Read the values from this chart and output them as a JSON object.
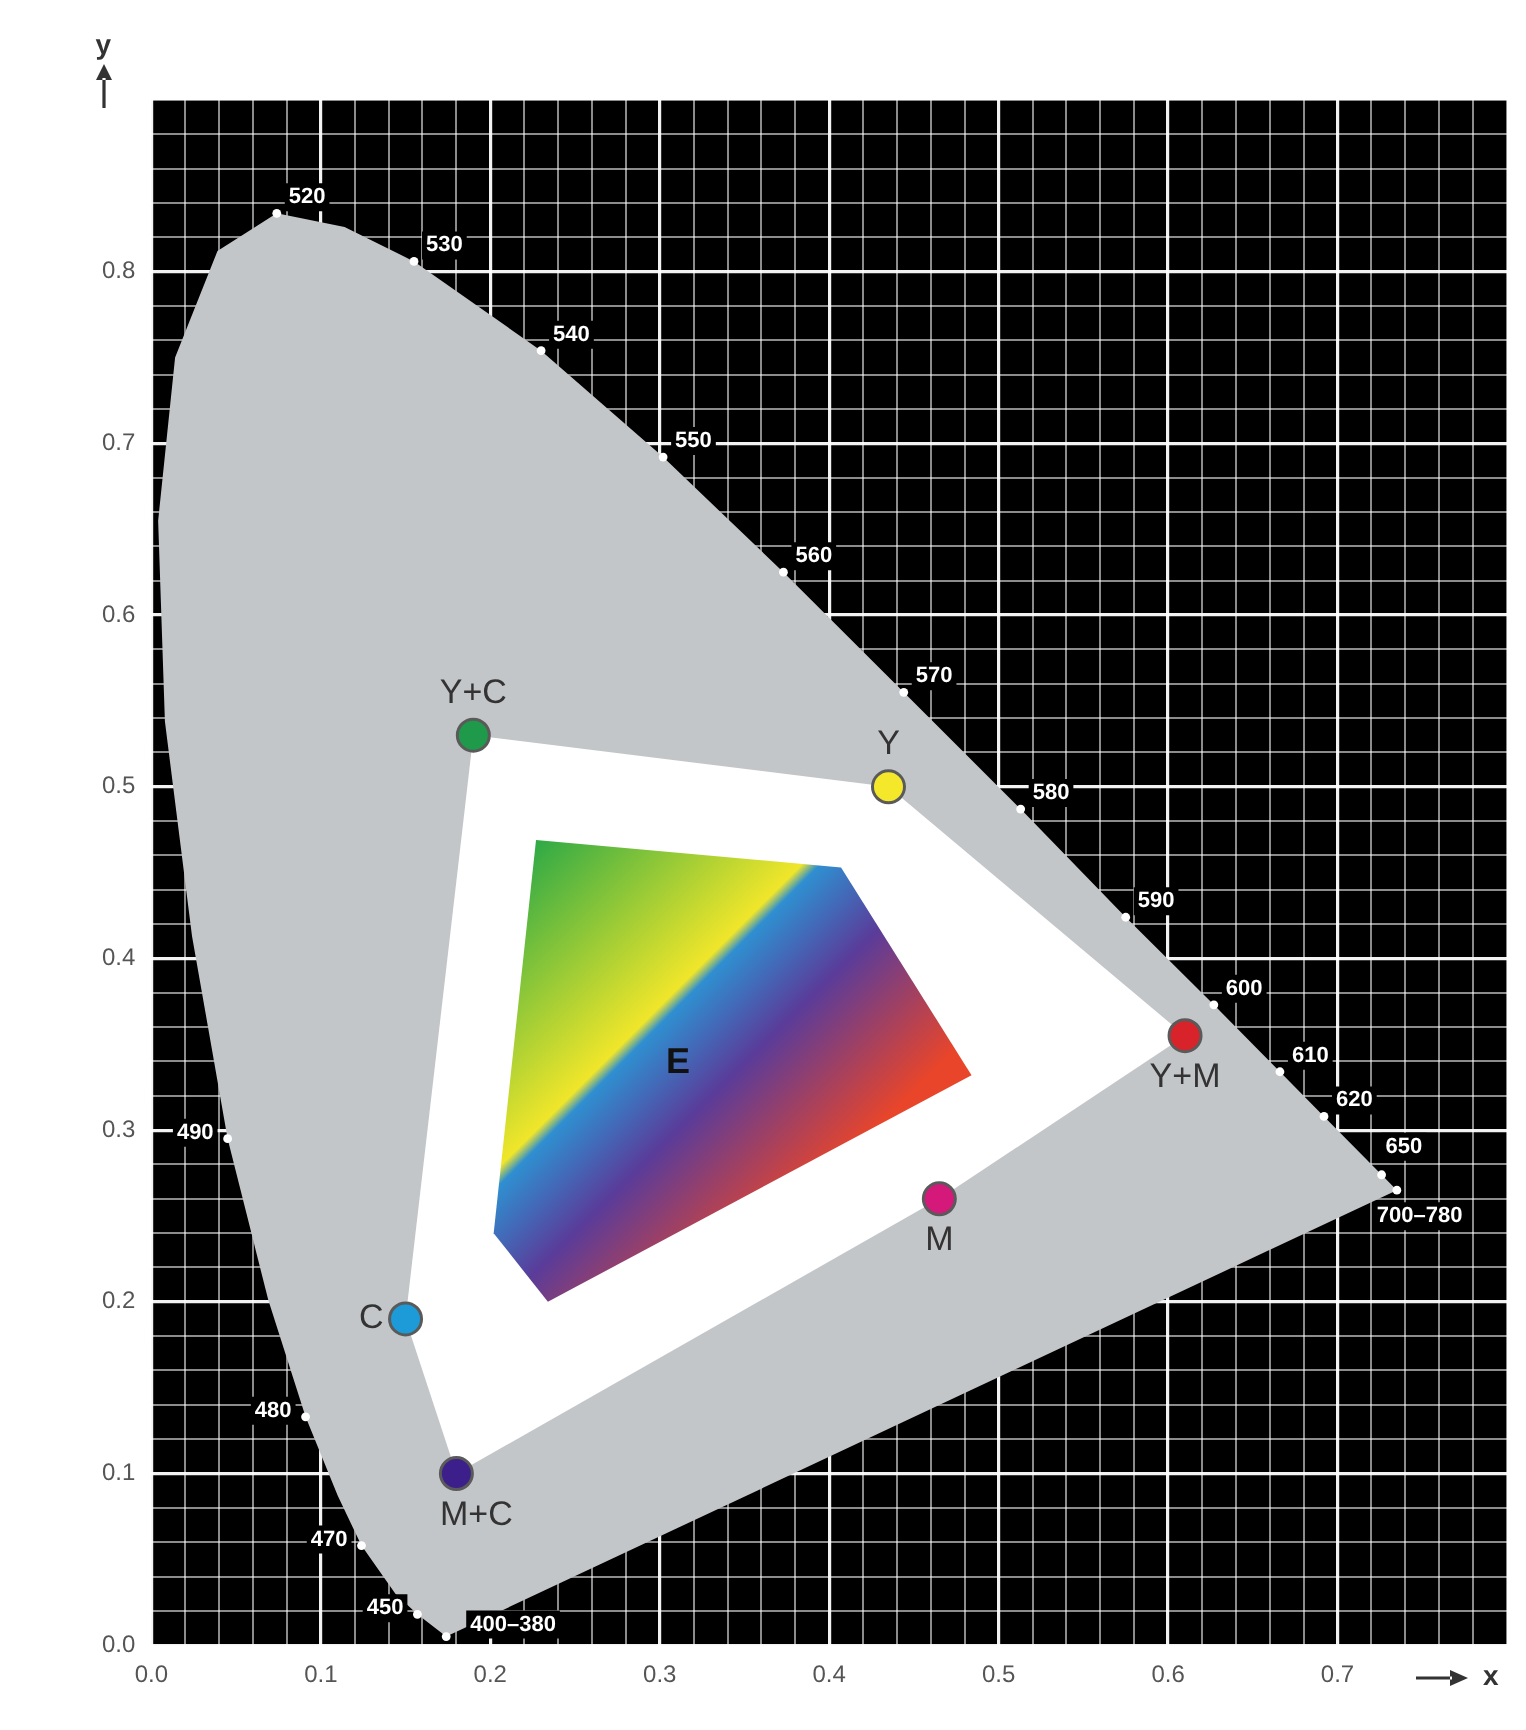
{
  "chart_data": {
    "type": "scatter",
    "xlabel": "x",
    "ylabel": "y",
    "xlim": [
      0,
      0.8
    ],
    "ylim": [
      0,
      0.9
    ],
    "xticks": [
      {
        "value": 0,
        "label": "0.0"
      },
      {
        "value": 0.02,
        "label": null
      },
      {
        "value": 0.04,
        "label": null
      },
      {
        "value": 0.06,
        "label": null
      },
      {
        "value": 0.08,
        "label": null
      },
      {
        "value": 0.1,
        "label": "0.1"
      },
      {
        "value": 0.12,
        "label": null
      },
      {
        "value": 0.14,
        "label": null
      },
      {
        "value": 0.16,
        "label": null
      },
      {
        "value": 0.18,
        "label": null
      },
      {
        "value": 0.2,
        "label": "0.2"
      },
      {
        "value": 0.22,
        "label": null
      },
      {
        "value": 0.24,
        "label": null
      },
      {
        "value": 0.26,
        "label": null
      },
      {
        "value": 0.28,
        "label": null
      },
      {
        "value": 0.3,
        "label": "0.3"
      },
      {
        "value": 0.32,
        "label": null
      },
      {
        "value": 0.34,
        "label": null
      },
      {
        "value": 0.36,
        "label": null
      },
      {
        "value": 0.38,
        "label": null
      },
      {
        "value": 0.4,
        "label": "0.4"
      },
      {
        "value": 0.42,
        "label": null
      },
      {
        "value": 0.44,
        "label": null
      },
      {
        "value": 0.46,
        "label": null
      },
      {
        "value": 0.48,
        "label": null
      },
      {
        "value": 0.5,
        "label": "0.5"
      },
      {
        "value": 0.52,
        "label": null
      },
      {
        "value": 0.54,
        "label": null
      },
      {
        "value": 0.56,
        "label": null
      },
      {
        "value": 0.58,
        "label": null
      },
      {
        "value": 0.6,
        "label": "0.6"
      },
      {
        "value": 0.62,
        "label": null
      },
      {
        "value": 0.64,
        "label": null
      },
      {
        "value": 0.66,
        "label": null
      },
      {
        "value": 0.68,
        "label": null
      },
      {
        "value": 0.7,
        "label": "0.7"
      },
      {
        "value": 0.72,
        "label": null
      },
      {
        "value": 0.74,
        "label": null
      },
      {
        "value": 0.76,
        "label": null
      },
      {
        "value": 0.78,
        "label": null
      },
      {
        "value": 0.8,
        "label": null
      }
    ],
    "yticks": [
      {
        "value": 0,
        "label": "0.0"
      },
      {
        "value": 0.02,
        "label": null
      },
      {
        "value": 0.04,
        "label": null
      },
      {
        "value": 0.06,
        "label": null
      },
      {
        "value": 0.08,
        "label": null
      },
      {
        "value": 0.1,
        "label": "0.1"
      },
      {
        "value": 0.12,
        "label": null
      },
      {
        "value": 0.14,
        "label": null
      },
      {
        "value": 0.16,
        "label": null
      },
      {
        "value": 0.18,
        "label": null
      },
      {
        "value": 0.2,
        "label": "0.2"
      },
      {
        "value": 0.22,
        "label": null
      },
      {
        "value": 0.24,
        "label": null
      },
      {
        "value": 0.26,
        "label": null
      },
      {
        "value": 0.28,
        "label": null
      },
      {
        "value": 0.3,
        "label": "0.3"
      },
      {
        "value": 0.32,
        "label": null
      },
      {
        "value": 0.34,
        "label": null
      },
      {
        "value": 0.36,
        "label": null
      },
      {
        "value": 0.38,
        "label": null
      },
      {
        "value": 0.4,
        "label": "0.4"
      },
      {
        "value": 0.42,
        "label": null
      },
      {
        "value": 0.44,
        "label": null
      },
      {
        "value": 0.46,
        "label": null
      },
      {
        "value": 0.48,
        "label": null
      },
      {
        "value": 0.5,
        "label": "0.5"
      },
      {
        "value": 0.52,
        "label": null
      },
      {
        "value": 0.54,
        "label": null
      },
      {
        "value": 0.56,
        "label": null
      },
      {
        "value": 0.58,
        "label": null
      },
      {
        "value": 0.6,
        "label": "0.6"
      },
      {
        "value": 0.62,
        "label": null
      },
      {
        "value": 0.64,
        "label": null
      },
      {
        "value": 0.66,
        "label": null
      },
      {
        "value": 0.68,
        "label": null
      },
      {
        "value": 0.7,
        "label": "0.7"
      },
      {
        "value": 0.72,
        "label": null
      },
      {
        "value": 0.74,
        "label": null
      },
      {
        "value": 0.76,
        "label": null
      },
      {
        "value": 0.78,
        "label": null
      },
      {
        "value": 0.8,
        "label": "0.8"
      },
      {
        "value": 0.82,
        "label": null
      },
      {
        "value": 0.84,
        "label": null
      },
      {
        "value": 0.86,
        "label": null
      },
      {
        "value": 0.88,
        "label": null
      },
      {
        "value": 0.9,
        "label": null
      }
    ],
    "grid": true,
    "legend": false,
    "series": [
      {
        "type": "area",
        "color": "#c3c6c8",
        "x": [
          0.174,
          0.157,
          0.144,
          0.124,
          0.11,
          0.091,
          0.069,
          0.045,
          0.024,
          0.008,
          0.004,
          0.014,
          0.039,
          0.074,
          0.114,
          0.155,
          0.23,
          0.302,
          0.373,
          0.444,
          0.513,
          0.575,
          0.627,
          0.666,
          0.692,
          0.726,
          0.735,
          0.174
        ],
        "values": [
          0.005,
          0.018,
          0.03,
          0.058,
          0.087,
          0.133,
          0.201,
          0.295,
          0.413,
          0.538,
          0.655,
          0.75,
          0.812,
          0.834,
          0.826,
          0.806,
          0.754,
          0.692,
          0.625,
          0.555,
          0.487,
          0.424,
          0.373,
          0.334,
          0.308,
          0.274,
          0.265,
          0.005
        ]
      },
      {
        "type": "area",
        "color": "#ffffff",
        "x": [
          0.19,
          0.435,
          0.61,
          0.465,
          0.18,
          0.15
        ],
        "values": [
          0.53,
          0.5,
          0.355,
          0.26,
          0.1,
          0.19
        ]
      },
      {
        "type": "area",
        "colors": [
          "#12a04a",
          "#f0e62a",
          "#e8452a",
          "#5a3c9a",
          "#2f8fd0"
        ],
        "x": [
          0.227,
          0.407,
          0.484,
          0.234,
          0.202
        ],
        "values": [
          0.469,
          0.453,
          0.332,
          0.2,
          0.24
        ]
      },
      {
        "type": "scatter",
        "name": "Y+C",
        "color": "#1f9a4a",
        "x": [
          0.19
        ],
        "values": [
          0.53
        ]
      },
      {
        "type": "scatter",
        "name": "Y",
        "color": "#f5e82a",
        "x": [
          0.435
        ],
        "values": [
          0.5
        ]
      },
      {
        "type": "scatter",
        "name": "Y+M",
        "color": "#d8232a",
        "x": [
          0.61
        ],
        "values": [
          0.355
        ]
      },
      {
        "type": "scatter",
        "name": "M",
        "color": "#d4197a",
        "x": [
          0.465
        ],
        "values": [
          0.26
        ]
      },
      {
        "type": "scatter",
        "name": "M+C",
        "color": "#3c1f8a",
        "x": [
          0.18
        ],
        "values": [
          0.1
        ]
      },
      {
        "type": "scatter",
        "name": "C",
        "color": "#1d9ad8",
        "x": [
          0.15
        ],
        "values": [
          0.19
        ]
      }
    ],
    "annotations": [
      "E",
      {
        "text": "520",
        "x": 0.074,
        "y": 0.834
      },
      {
        "text": "530",
        "x": 0.155,
        "y": 0.806
      },
      {
        "text": "540",
        "x": 0.23,
        "y": 0.754
      },
      {
        "text": "550",
        "x": 0.302,
        "y": 0.692
      },
      {
        "text": "560",
        "x": 0.373,
        "y": 0.625
      },
      {
        "text": "570",
        "x": 0.444,
        "y": 0.555
      },
      {
        "text": "580",
        "x": 0.513,
        "y": 0.487
      },
      {
        "text": "590",
        "x": 0.575,
        "y": 0.424
      },
      {
        "text": "600",
        "x": 0.627,
        "y": 0.373
      },
      {
        "text": "610",
        "x": 0.666,
        "y": 0.334
      },
      {
        "text": "620",
        "x": 0.692,
        "y": 0.308
      },
      {
        "text": "650",
        "x": 0.726,
        "y": 0.274
      },
      {
        "text": "700–780",
        "x": 0.735,
        "y": 0.265
      },
      {
        "text": "490",
        "x": 0.045,
        "y": 0.295
      },
      {
        "text": "480",
        "x": 0.091,
        "y": 0.133
      },
      {
        "text": "470",
        "x": 0.124,
        "y": 0.058
      },
      {
        "text": "450",
        "x": 0.157,
        "y": 0.018
      },
      {
        "text": "400–380",
        "x": 0.174,
        "y": 0.005
      }
    ]
  }
}
